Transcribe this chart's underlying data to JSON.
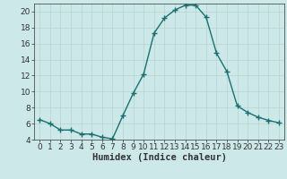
{
  "x": [
    0,
    1,
    2,
    3,
    4,
    5,
    6,
    7,
    8,
    9,
    10,
    11,
    12,
    13,
    14,
    15,
    16,
    17,
    18,
    19,
    20,
    21,
    22,
    23
  ],
  "y": [
    6.5,
    6.0,
    5.2,
    5.2,
    4.7,
    4.7,
    4.3,
    4.1,
    7.0,
    9.8,
    12.2,
    17.3,
    19.2,
    20.2,
    20.8,
    20.8,
    19.3,
    14.8,
    12.5,
    8.2,
    7.4,
    6.8,
    6.4,
    6.1
  ],
  "xlabel": "Humidex (Indice chaleur)",
  "ylim": [
    4,
    21
  ],
  "xlim": [
    -0.5,
    23.5
  ],
  "yticks": [
    4,
    6,
    8,
    10,
    12,
    14,
    16,
    18,
    20
  ],
  "xticks": [
    0,
    1,
    2,
    3,
    4,
    5,
    6,
    7,
    8,
    9,
    10,
    11,
    12,
    13,
    14,
    15,
    16,
    17,
    18,
    19,
    20,
    21,
    22,
    23
  ],
  "line_color": "#1a7070",
  "marker": "+",
  "marker_size": 4,
  "bg_color": "#cce8e8",
  "grid_color": "#b8d0d0",
  "axis_color": "#333333",
  "xlabel_fontsize": 7.5,
  "tick_fontsize": 6.5,
  "line_width": 1.0
}
